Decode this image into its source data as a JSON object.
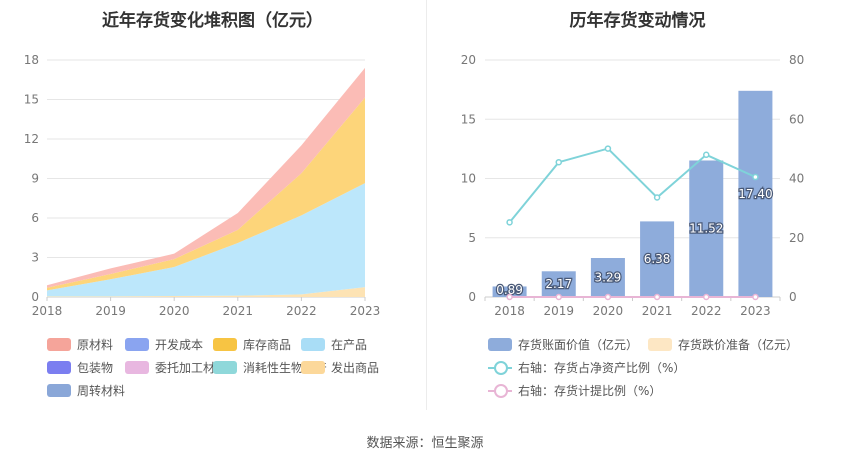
{
  "footer": {
    "source": "数据来源：恒生聚源"
  },
  "chart_data": [
    {
      "type": "area",
      "title": "近年存货变化堆积图（亿元）",
      "x": [
        "2018",
        "2019",
        "2020",
        "2021",
        "2022",
        "2023"
      ],
      "ylim": [
        0,
        18
      ],
      "yticks": [
        0,
        3,
        6,
        9,
        12,
        15,
        18
      ],
      "grid": true,
      "legend_position": "bottom",
      "legend": [
        "原材料",
        "开发成本",
        "库存商品",
        "在产品",
        "包装物",
        "委托加工材料",
        "消耗性生物资产",
        "发出商品",
        "周转材料"
      ],
      "legend_colors": [
        "#f5a49a",
        "#8aa4f0",
        "#f7c443",
        "#a9ddf6",
        "#7b7ef0",
        "#e8b7e0",
        "#8fd8da",
        "#fcd89a",
        "#8aa7d8"
      ],
      "series": [
        {
          "name": "发出商品",
          "color": "#fde3b4",
          "values": [
            0.05,
            0.05,
            0.08,
            0.1,
            0.2,
            0.75
          ]
        },
        {
          "name": "在产品",
          "color": "#bce7fb",
          "values": [
            0.45,
            1.3,
            2.2,
            4.0,
            6.0,
            7.9
          ]
        },
        {
          "name": "库存商品",
          "color": "#fdd57a",
          "values": [
            0.2,
            0.4,
            0.6,
            1.0,
            3.2,
            6.5
          ]
        },
        {
          "name": "原材料",
          "color": "#fbbcb6",
          "values": [
            0.19,
            0.42,
            0.41,
            1.28,
            2.12,
            2.25
          ]
        }
      ]
    },
    {
      "type": "bar+line",
      "title": "历年存货变动情况",
      "x": [
        "2018",
        "2019",
        "2020",
        "2021",
        "2022",
        "2023"
      ],
      "ylim_left": [
        0,
        20
      ],
      "yticks_left": [
        0,
        5,
        10,
        15,
        20
      ],
      "ylim_right": [
        0,
        80
      ],
      "yticks_right": [
        0,
        20,
        40,
        60,
        80
      ],
      "grid": true,
      "legend_position": "bottom",
      "bar_series": [
        {
          "name": "存货账面价值（亿元）",
          "color": "#8eacdb",
          "values": [
            0.89,
            2.17,
            3.29,
            6.38,
            11.52,
            17.4
          ],
          "labels": [
            "0.89",
            "2.17",
            "3.29",
            "6.38",
            "11.52",
            "17.40"
          ]
        },
        {
          "name": "存货跌价准备（亿元）",
          "color": "#fde7c4",
          "values": [
            0,
            0,
            0,
            0,
            0,
            0
          ]
        }
      ],
      "line_series": [
        {
          "name": "右轴：存货占净资产比例（%）",
          "color": "#7fd3d9",
          "values": [
            25.2,
            45.5,
            50.1,
            33.6,
            48.0,
            40.5
          ]
        },
        {
          "name": "右轴：存货计提比例（%）",
          "color": "#e8b5d5",
          "values": [
            0,
            0,
            0,
            0,
            0,
            0
          ]
        }
      ]
    }
  ]
}
